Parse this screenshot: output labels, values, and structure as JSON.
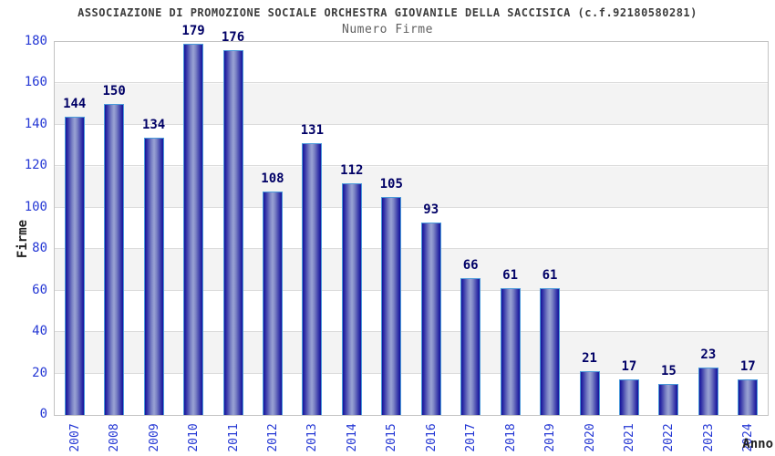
{
  "chart_data": {
    "type": "bar",
    "title": "ASSOCIAZIONE DI PROMOZIONE SOCIALE ORCHESTRA GIOVANILE DELLA SACCISICA (c.f.92180580281)",
    "subtitle": "Numero Firme",
    "xlabel": "Anno",
    "ylabel": "Firme",
    "categories": [
      "2007",
      "2008",
      "2009",
      "2010",
      "2011",
      "2012",
      "2013",
      "2014",
      "2015",
      "2016",
      "2017",
      "2018",
      "2019",
      "2020",
      "2021",
      "2022",
      "2023",
      "2024"
    ],
    "values": [
      144,
      150,
      134,
      179,
      176,
      108,
      131,
      112,
      105,
      93,
      66,
      61,
      61,
      21,
      17,
      15,
      23,
      17
    ],
    "bar_labels": true,
    "ylim": [
      0,
      180
    ],
    "ytick_step": 20,
    "grid": true,
    "grid_bands": "alternating white / light gray every 20 units",
    "legend": "none",
    "x_tick_rotation_deg": 90
  },
  "colors": {
    "title": "#3c3c3c",
    "subtitle": "#5f5f5f",
    "tick_label": "#2437d4",
    "value_label": "#000066",
    "axis_label": "#222222",
    "bar_edge": "#13139a",
    "bar_center": "#9aa3d4",
    "bar_border": "#4b9ada",
    "plot_border": "#c3c3c3",
    "gridline": "#dcdcdc",
    "band": "#f3f3f3"
  }
}
